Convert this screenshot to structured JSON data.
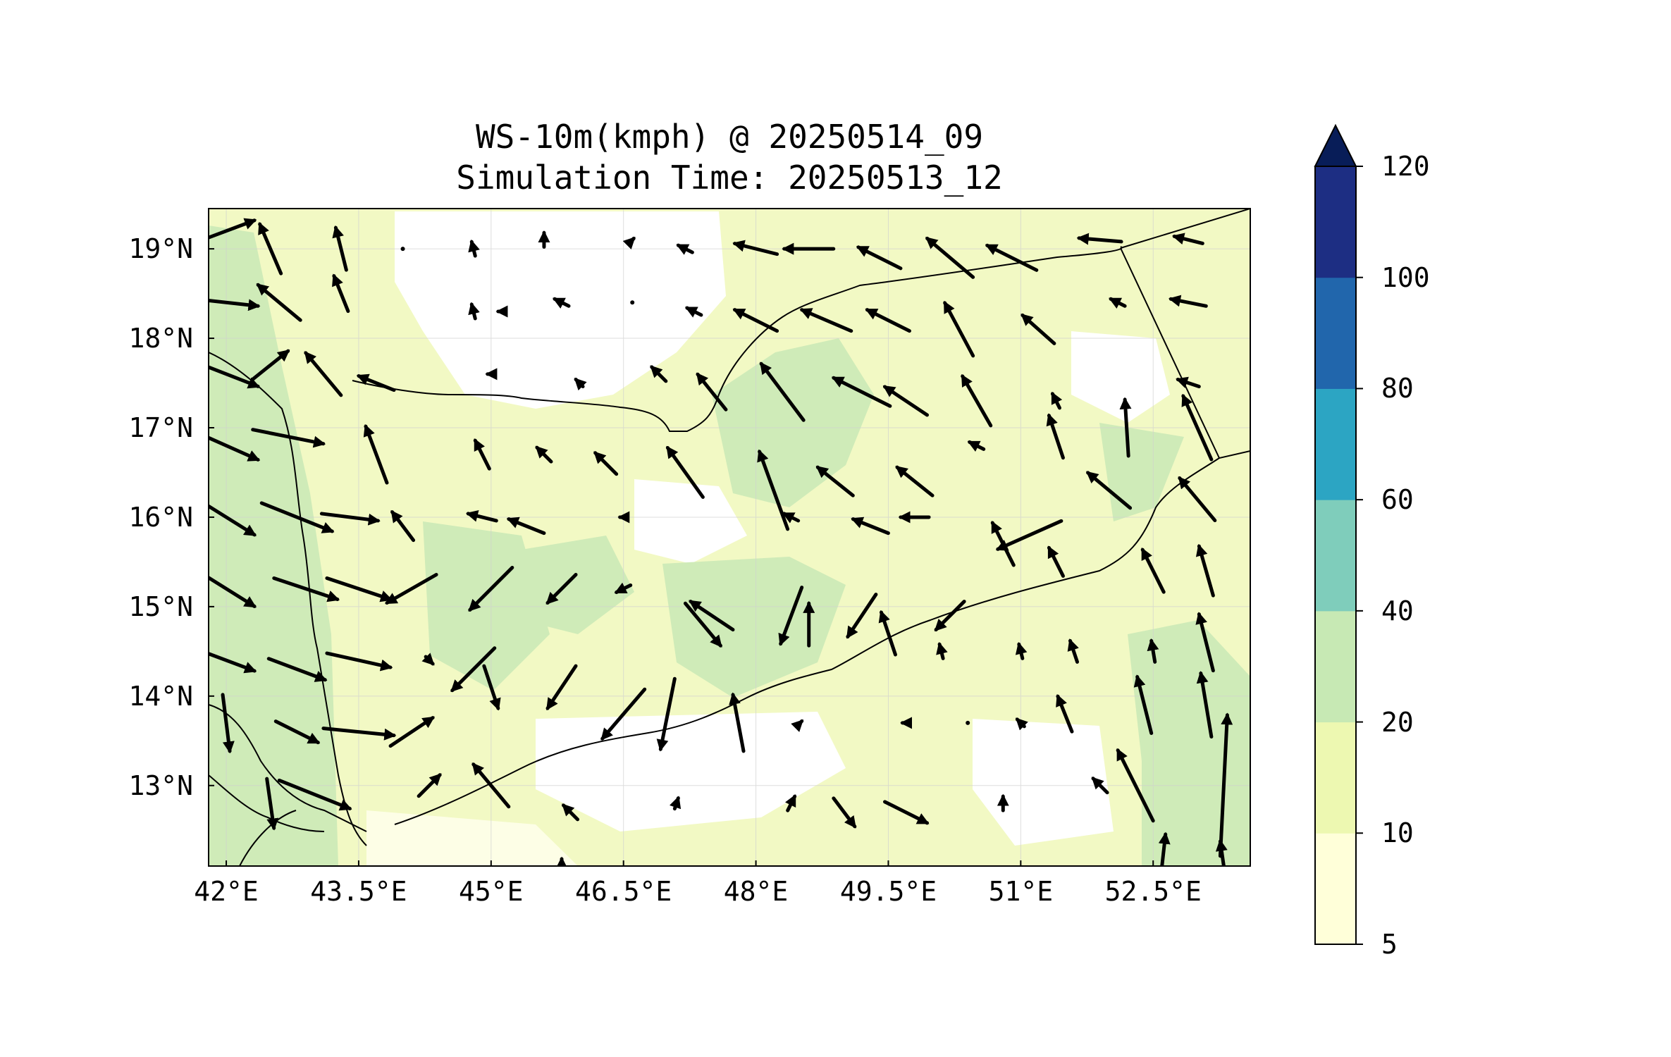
{
  "title": {
    "line1": "WS-10m(kmph) @ 20250514_09",
    "line2": "Simulation Time: 20250513_12"
  },
  "map": {
    "lon_range": [
      41.8,
      53.6
    ],
    "lat_range": [
      12.1,
      19.45
    ],
    "lon_ticks": [
      {
        "value": 42.0,
        "label": "42°E"
      },
      {
        "value": 43.5,
        "label": "43.5°E"
      },
      {
        "value": 45.0,
        "label": "45°E"
      },
      {
        "value": 46.5,
        "label": "46.5°E"
      },
      {
        "value": 48.0,
        "label": "48°E"
      },
      {
        "value": 49.5,
        "label": "49.5°E"
      },
      {
        "value": 51.0,
        "label": "51°E"
      },
      {
        "value": 52.5,
        "label": "52.5°E"
      }
    ],
    "lat_ticks": [
      {
        "value": 19,
        "label": "19°N"
      },
      {
        "value": 18,
        "label": "18°N"
      },
      {
        "value": 17,
        "label": "17°N"
      },
      {
        "value": 16,
        "label": "16°N"
      },
      {
        "value": 15,
        "label": "15°N"
      },
      {
        "value": 14,
        "label": "14°N"
      },
      {
        "value": 13,
        "label": "13°N"
      }
    ],
    "background_color": "#f2f9c4",
    "gridlines": true
  },
  "colorbar": {
    "levels": [
      {
        "value": "5",
        "color": "#ffffd9"
      },
      {
        "value": "10",
        "color": "#edf8b1"
      },
      {
        "value": "20",
        "color": "#c7e9b4"
      },
      {
        "value": "40",
        "color": "#7fcdbb"
      },
      {
        "value": "60",
        "color": "#2ca5c3"
      },
      {
        "value": "80",
        "color": "#2166ac"
      },
      {
        "value": "100",
        "color": "#1d2e83"
      },
      {
        "value": "120",
        "color": "#081d58"
      }
    ],
    "extend": "max"
  }
}
